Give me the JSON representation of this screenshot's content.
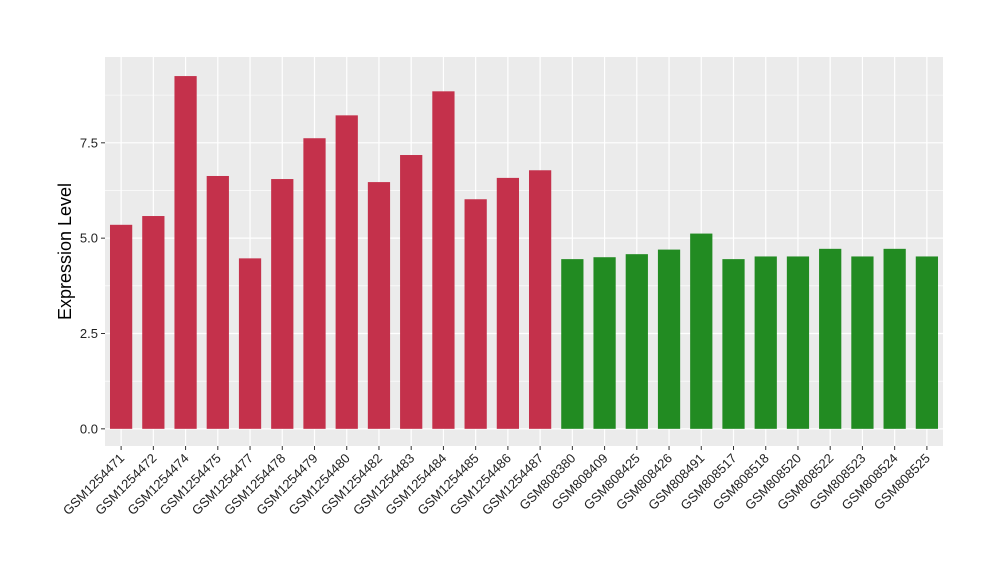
{
  "chart_data": {
    "type": "bar",
    "title": "",
    "xlabel": "",
    "ylabel": "Expression Level",
    "ylim": [
      -0.45,
      9.75
    ],
    "yticks": [
      0.0,
      2.5,
      5.0,
      7.5
    ],
    "ytick_labels": [
      "0.0",
      "2.5",
      "5.0",
      "7.5"
    ],
    "grid": true,
    "legend": "none",
    "categories": [
      "GSM1254471",
      "GSM1254472",
      "GSM1254474",
      "GSM1254475",
      "GSM1254477",
      "GSM1254478",
      "GSM1254479",
      "GSM1254480",
      "GSM1254482",
      "GSM1254483",
      "GSM1254484",
      "GSM1254485",
      "GSM1254486",
      "GSM1254487",
      "GSM808380",
      "GSM808409",
      "GSM808425",
      "GSM808426",
      "GSM808491",
      "GSM808517",
      "GSM808518",
      "GSM808520",
      "GSM808522",
      "GSM808523",
      "GSM808524",
      "GSM808525"
    ],
    "values": [
      5.35,
      5.58,
      9.25,
      6.63,
      4.47,
      6.55,
      7.62,
      8.22,
      6.47,
      7.18,
      8.85,
      6.02,
      6.58,
      6.78,
      4.45,
      4.5,
      4.58,
      4.7,
      5.12,
      4.45,
      4.52,
      4.52,
      4.72,
      4.52,
      4.72,
      4.52
    ],
    "colors": [
      "#C4314B",
      "#C4314B",
      "#C4314B",
      "#C4314B",
      "#C4314B",
      "#C4314B",
      "#C4314B",
      "#C4314B",
      "#C4314B",
      "#C4314B",
      "#C4314B",
      "#C4314B",
      "#C4314B",
      "#C4314B",
      "#228B22",
      "#228B22",
      "#228B22",
      "#228B22",
      "#228B22",
      "#228B22",
      "#228B22",
      "#228B22",
      "#228B22",
      "#228B22",
      "#228B22",
      "#228B22"
    ],
    "panel_background": "#EBEBEB",
    "grid_color": "#FFFFFF"
  }
}
